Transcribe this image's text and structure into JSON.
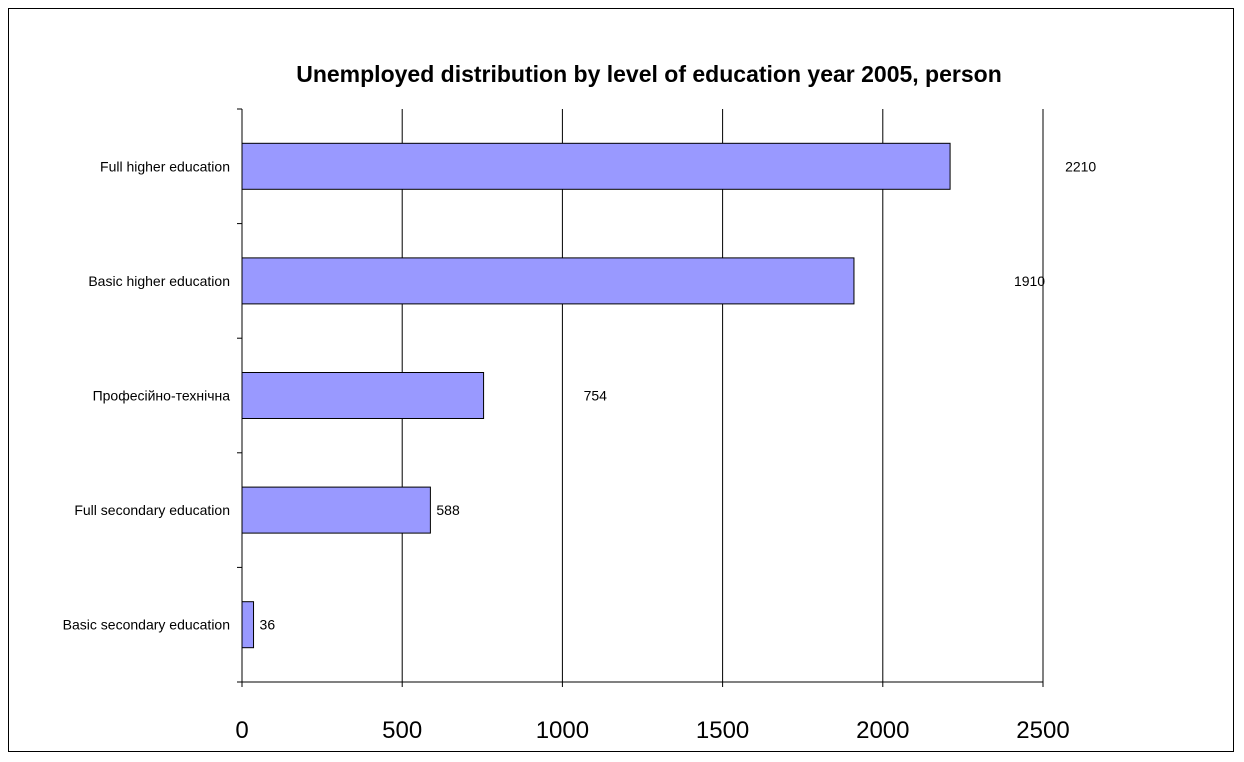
{
  "chart_data": {
    "type": "bar",
    "orientation": "horizontal",
    "title": "Unemployed distribution by level of education year 2005, person",
    "xlabel": "",
    "ylabel": "",
    "categories": [
      "Full higher education",
      "Basic higher education",
      "Професійно-технічна",
      "Full secondary education",
      "Basic secondary education"
    ],
    "values": [
      2210,
      1910,
      754,
      588,
      36
    ],
    "data_labels": [
      "2210",
      "1910",
      "754",
      "588",
      "36"
    ],
    "xlim": [
      0,
      2500
    ],
    "xticks": [
      "0",
      "500",
      "1000",
      "1500",
      "2000",
      "2500"
    ],
    "grid": "vertical",
    "legend": "none",
    "bar_color": "#9999ff",
    "bar_border_color": "#000000"
  }
}
